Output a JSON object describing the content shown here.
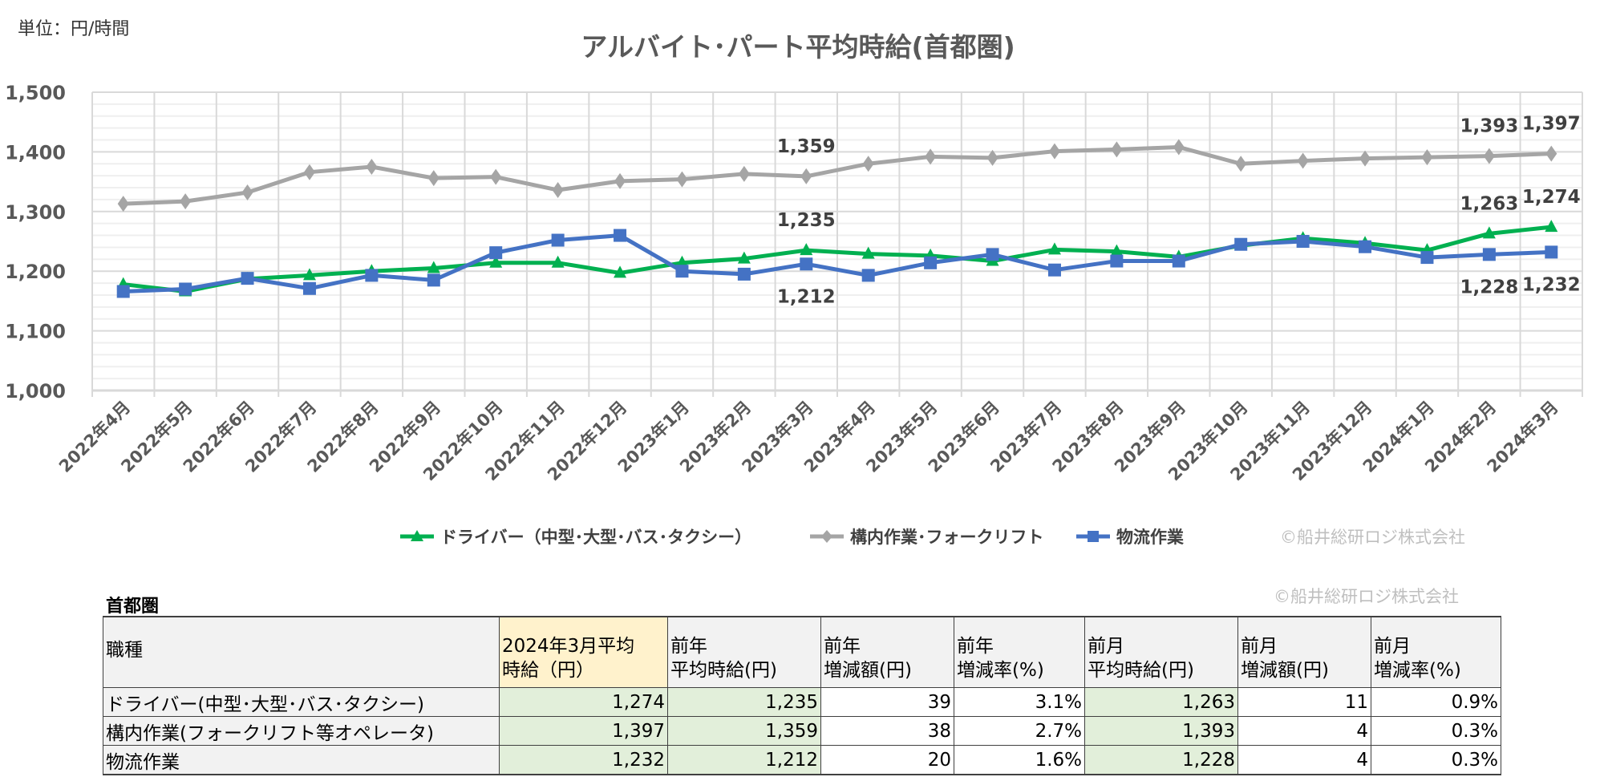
{
  "unit_label": "単位：円/時間",
  "chart_data": {
    "type": "line",
    "title": "アルバイト･パート平均時給(首都圏)",
    "xlabel": "",
    "ylabel": "",
    "ylim": [
      1000,
      1500
    ],
    "yticks": [
      "1,000",
      "1,100",
      "1,200",
      "1,300",
      "1,400",
      "1,500"
    ],
    "ytick_values": [
      1000,
      1100,
      1200,
      1300,
      1400,
      1500
    ],
    "grid": true,
    "legend_position": "bottom",
    "categories": [
      "2022年4月",
      "2022年5月",
      "2022年6月",
      "2022年7月",
      "2022年8月",
      "2022年9月",
      "2022年10月",
      "2022年11月",
      "2022年12月",
      "2023年1月",
      "2023年2月",
      "2023年3月",
      "2023年4月",
      "2023年5月",
      "2023年6月",
      "2023年7月",
      "2023年8月",
      "2023年9月",
      "2023年10月",
      "2023年11月",
      "2023年12月",
      "2024年1月",
      "2024年2月",
      "2024年3月"
    ],
    "series": [
      {
        "name": "ドライバー（中型･大型･バス･タクシー）",
        "color": "#00b050",
        "marker": "triangle",
        "values": [
          1178,
          1166,
          1187,
          1193,
          1200,
          1205,
          1214,
          1214,
          1197,
          1214,
          1221,
          1235,
          1229,
          1226,
          1217,
          1236,
          1233,
          1224,
          1243,
          1255,
          1247,
          1235,
          1263,
          1274
        ],
        "labels": {
          "11": "1,235",
          "22": "1,263",
          "23": "1,274"
        },
        "label_side": "above"
      },
      {
        "name": "構内作業･フォークリフト",
        "color": "#a5a5a5",
        "marker": "diamond",
        "values": [
          1313,
          1317,
          1332,
          1366,
          1375,
          1356,
          1358,
          1336,
          1351,
          1354,
          1363,
          1359,
          1380,
          1392,
          1390,
          1401,
          1404,
          1408,
          1380,
          1385,
          1389,
          1391,
          1393,
          1397
        ],
        "labels": {
          "11": "1,359",
          "22": "1,393",
          "23": "1,397"
        },
        "label_side": "above"
      },
      {
        "name": "物流作業",
        "color": "#4472c4",
        "marker": "square",
        "values": [
          1166,
          1170,
          1188,
          1171,
          1193,
          1185,
          1231,
          1252,
          1260,
          1200,
          1195,
          1212,
          1193,
          1214,
          1228,
          1202,
          1217,
          1217,
          1245,
          1250,
          1241,
          1223,
          1228,
          1232
        ],
        "labels": {
          "11": "1,212",
          "22": "1,228",
          "23": "1,232"
        },
        "label_side": "below"
      }
    ]
  },
  "legend_copyright": "©船井総研ロジ株式会社",
  "table": {
    "title": "首都圏",
    "copyright": "©船井総研ロジ株式会社",
    "headers": [
      [
        "職種"
      ],
      [
        "2024年3月平均",
        "時給（円）"
      ],
      [
        "前年",
        "平均時給(円)"
      ],
      [
        "前年",
        "増減額(円)"
      ],
      [
        "前年",
        "増減率(%)"
      ],
      [
        "前月",
        "平均時給(円)"
      ],
      [
        "前月",
        "増減額(円)"
      ],
      [
        "前月",
        "増減率(%)"
      ]
    ],
    "rows": [
      [
        "ドライバー(中型･大型･バス･タクシー)",
        "1,274",
        "1,235",
        "39",
        "3.1%",
        "1,263",
        "11",
        "0.9%"
      ],
      [
        "構内作業(フォークリフト等オペレータ)",
        "1,397",
        "1,359",
        "38",
        "2.7%",
        "1,393",
        "4",
        "0.3%"
      ],
      [
        "物流作業",
        "1,232",
        "1,212",
        "20",
        "1.6%",
        "1,228",
        "4",
        "0.3%"
      ]
    ]
  }
}
